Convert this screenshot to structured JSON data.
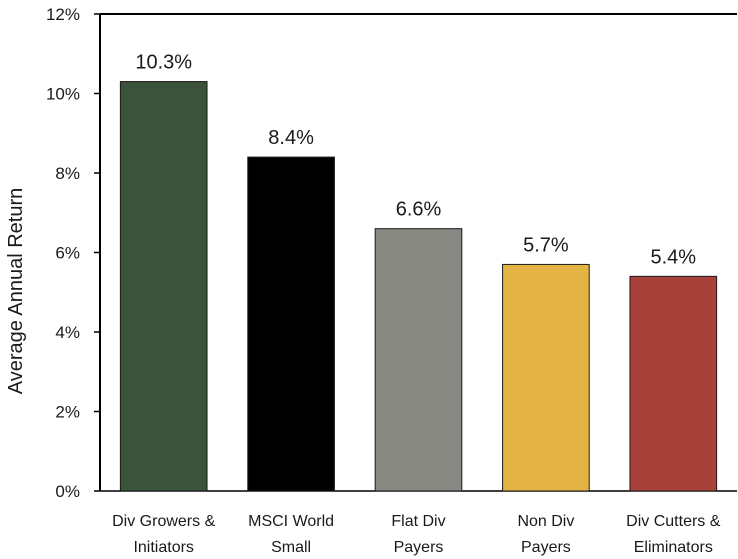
{
  "chart_data": {
    "type": "bar",
    "title": "",
    "xlabel": "",
    "ylabel": "Average Annual Return",
    "ylim": [
      0,
      12
    ],
    "yticks": [
      "0%",
      "2%",
      "4%",
      "6%",
      "8%",
      "10%",
      "12%"
    ],
    "categories": [
      [
        "Div Growers &",
        "Initiators"
      ],
      [
        "MSCI World",
        "Small"
      ],
      [
        "Flat Div",
        "Payers"
      ],
      [
        "Non Div",
        "Payers"
      ],
      [
        "Div Cutters &",
        "Eliminators"
      ]
    ],
    "values": [
      10.3,
      8.4,
      6.6,
      5.7,
      5.4
    ],
    "data_labels": [
      "10.3%",
      "8.4%",
      "6.6%",
      "5.7%",
      "5.4%"
    ],
    "colors": [
      "#3b523b",
      "#000000",
      "#878882",
      "#e3b444",
      "#a8413a"
    ],
    "grid": false,
    "legend": "none"
  }
}
